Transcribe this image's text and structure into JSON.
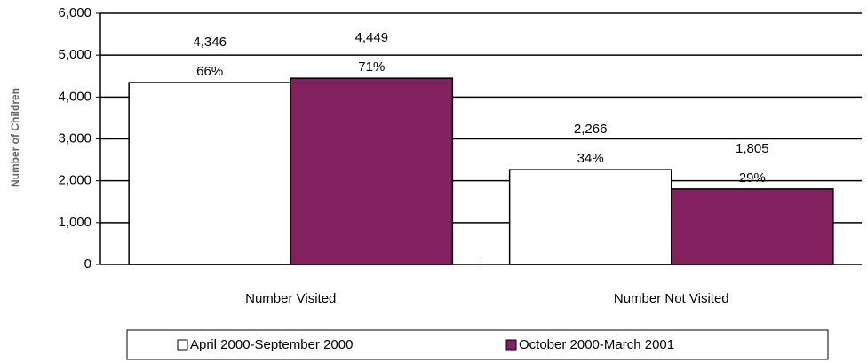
{
  "chart_data": {
    "type": "bar",
    "y_label": "Number of Children",
    "categories": [
      "Number Visited",
      "Number Not Visited"
    ],
    "series": [
      {
        "name": "April 2000-September 2000",
        "color": "#ffffff",
        "values": [
          4346,
          2266
        ],
        "value_labels": [
          "4,346",
          "2,266"
        ],
        "percent_labels": [
          "66%",
          "34%"
        ]
      },
      {
        "name": "October 2000-March 2001",
        "color": "#822060",
        "values": [
          4449,
          1805
        ],
        "value_labels": [
          "4,449",
          "1,805"
        ],
        "percent_labels": [
          "71%",
          "29%"
        ]
      }
    ],
    "ylim": [
      0,
      6000
    ],
    "yticks": [
      0,
      {
        "value": 1000,
        "label": "1,000"
      },
      {
        "value": 2000,
        "label": "2,000"
      },
      {
        "value": 3000,
        "label": "3,000"
      },
      {
        "value": 4000,
        "label": "4,000"
      },
      {
        "value": 5000,
        "label": "5,000"
      },
      {
        "value": 6000,
        "label": "6,000"
      }
    ],
    "grid": true,
    "legend": "bottom"
  }
}
